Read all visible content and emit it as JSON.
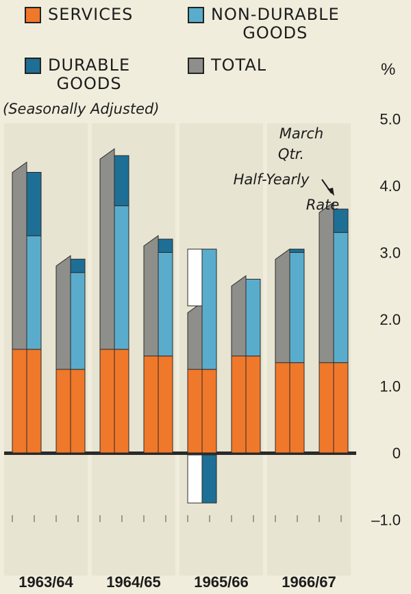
{
  "legend": [
    {
      "key": "services",
      "lines": [
        "SERVICES"
      ],
      "color": "#f0782a"
    },
    {
      "key": "nondurable",
      "lines": [
        "NON-DURABLE",
        "GOODS"
      ],
      "color": "#5aaccc"
    },
    {
      "key": "durable",
      "lines": [
        "DURABLE",
        "GOODS"
      ],
      "color": "#1e6f96"
    },
    {
      "key": "total",
      "lines": [
        "TOTAL"
      ],
      "color": "#8e8e8a"
    }
  ],
  "note": "(Seasonally Adjusted)",
  "unit": "%",
  "annotation": {
    "line1": "March",
    "line2": "Qtr.",
    "line3": "Half-Yearly",
    "line4": "Rate"
  },
  "chart_data": {
    "type": "bar",
    "stacked": true,
    "categories": [
      "1963/64",
      "1963/64",
      "1964/65",
      "1964/65",
      "1965/66",
      "1965/66",
      "1966/67",
      "1966/67"
    ],
    "period_labels": [
      "1963/64",
      "1964/65",
      "1965/66",
      "1966/67"
    ],
    "series": [
      {
        "name": "SERVICES",
        "key": "services",
        "values": [
          1.55,
          1.25,
          1.55,
          1.45,
          1.25,
          1.45,
          1.35,
          1.35
        ]
      },
      {
        "name": "NON-DURABLE GOODS",
        "key": "nondurable",
        "values": [
          1.7,
          1.45,
          2.15,
          1.55,
          1.8,
          1.15,
          1.65,
          1.95
        ]
      },
      {
        "name": "DURABLE GOODS",
        "key": "durable",
        "values": [
          0.95,
          0.2,
          0.75,
          0.2,
          -0.75,
          0.0,
          0.05,
          0.35
        ]
      },
      {
        "name": "TOTAL",
        "key": "total",
        "values": [
          4.3,
          2.9,
          4.5,
          3.2,
          2.2,
          2.6,
          3.0,
          3.7
        ]
      }
    ],
    "ylim": [
      -1.0,
      5.0
    ],
    "yticks": [
      5.0,
      4.0,
      3.0,
      2.0,
      1.0,
      0,
      -1.0
    ],
    "ytick_labels": [
      "5.0",
      "4.0",
      "3.0",
      "2.0",
      "1.0",
      "0",
      "–1.0"
    ],
    "colors": {
      "background": "#f1eddc",
      "column_band": "#e8e4d2",
      "services": "#f0782a",
      "nondurable": "#5aaccc",
      "durable": "#1e6f96",
      "total": "#8e8e8a",
      "negative_fill": "#ffffff"
    }
  }
}
